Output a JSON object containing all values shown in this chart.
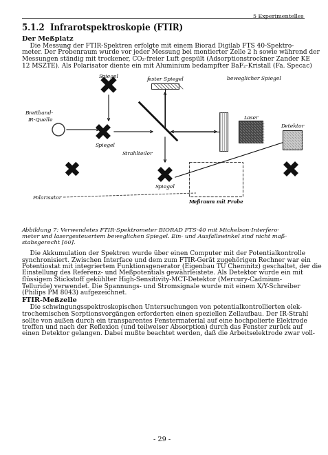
{
  "bg_color": "#ffffff",
  "page_header": "5 Experimentelles",
  "section_heading": "5.1.2  Infrarotspektroskopie (FTIR)",
  "subsection1": "Der Meßplatz",
  "para1_lines": [
    "    Die Messung der FTIR-Spektren erfolgte mit einem Biorad Digilab FTS 40-Spektro-",
    "meter. Der Probenraum wurde vor jeder Messung bei montierter Zelle 2 h sowie während der",
    "Messungen ständig mit trockener, CO₂-freier Luft gespült (Adsorptionstrockner Zander KE",
    "12 MSZTE). Als Polarisator diente ein mit Aluminium bedampfter BaF₂-Kristall (Fa. Specac)"
  ],
  "fig_caption_lines": [
    "Abbildung 7: Verwendetes FTIR-Spektrometer BIORAD FTS-40 mit Michelson-Interfero-",
    "meter und lasergesteuertem beweglichen Spiegel. Ein- und Ausfallswinkel sind nicht maß-",
    "stabsgerecht [60]."
  ],
  "para2_lines": [
    "    Die Akkumulation der Spektren wurde über einen Computer mit der Potentialkontrolle",
    "synchronisiert. Zwischen Interface und dem zum FTIR-Gerät zugehörigen Rechner war ein",
    "Potentiostat mit integriertem Funktionsgenerator (Eigenbau TU Chemnitz) geschaltet, der die",
    "Einstellung des Referenz- und Meßpotentials gewährleistete. Als Detektor wurde ein mit",
    "flüssigem Stickstoff gekühlter High-Sensitivity-MCT-Detektor (Mercury-Cadmium-",
    "Telluride) verwendet. Die Spannungs- und Stromsignale wurde mit einem X/Y-Schreiber",
    "(Philips PM 8043) aufgezeichnet."
  ],
  "subsection2": "FTIR-Meßzelle",
  "para3_lines": [
    "    Die schwingungsspektroskopischen Untersuchungen von potentialkontrollierten elek-",
    "trochemischen Sorptionsvorgängen erforderten einen speziellen Zellaufbau. Der IR-Strahl",
    "sollte von außen durch ein transparentes Fenstermaterial auf eine hochpolierte Elektrode",
    "treffen und nach der Reflexion (und teilweiser Absorption) durch das Fenster zurück auf",
    "einen Detektor gelangen. Dabei mußte beachtet werden, daß die Arbeitselektrode zwar voll-"
  ],
  "page_number": "- 29 -",
  "text_color": "#111111",
  "header_color": "#111111"
}
